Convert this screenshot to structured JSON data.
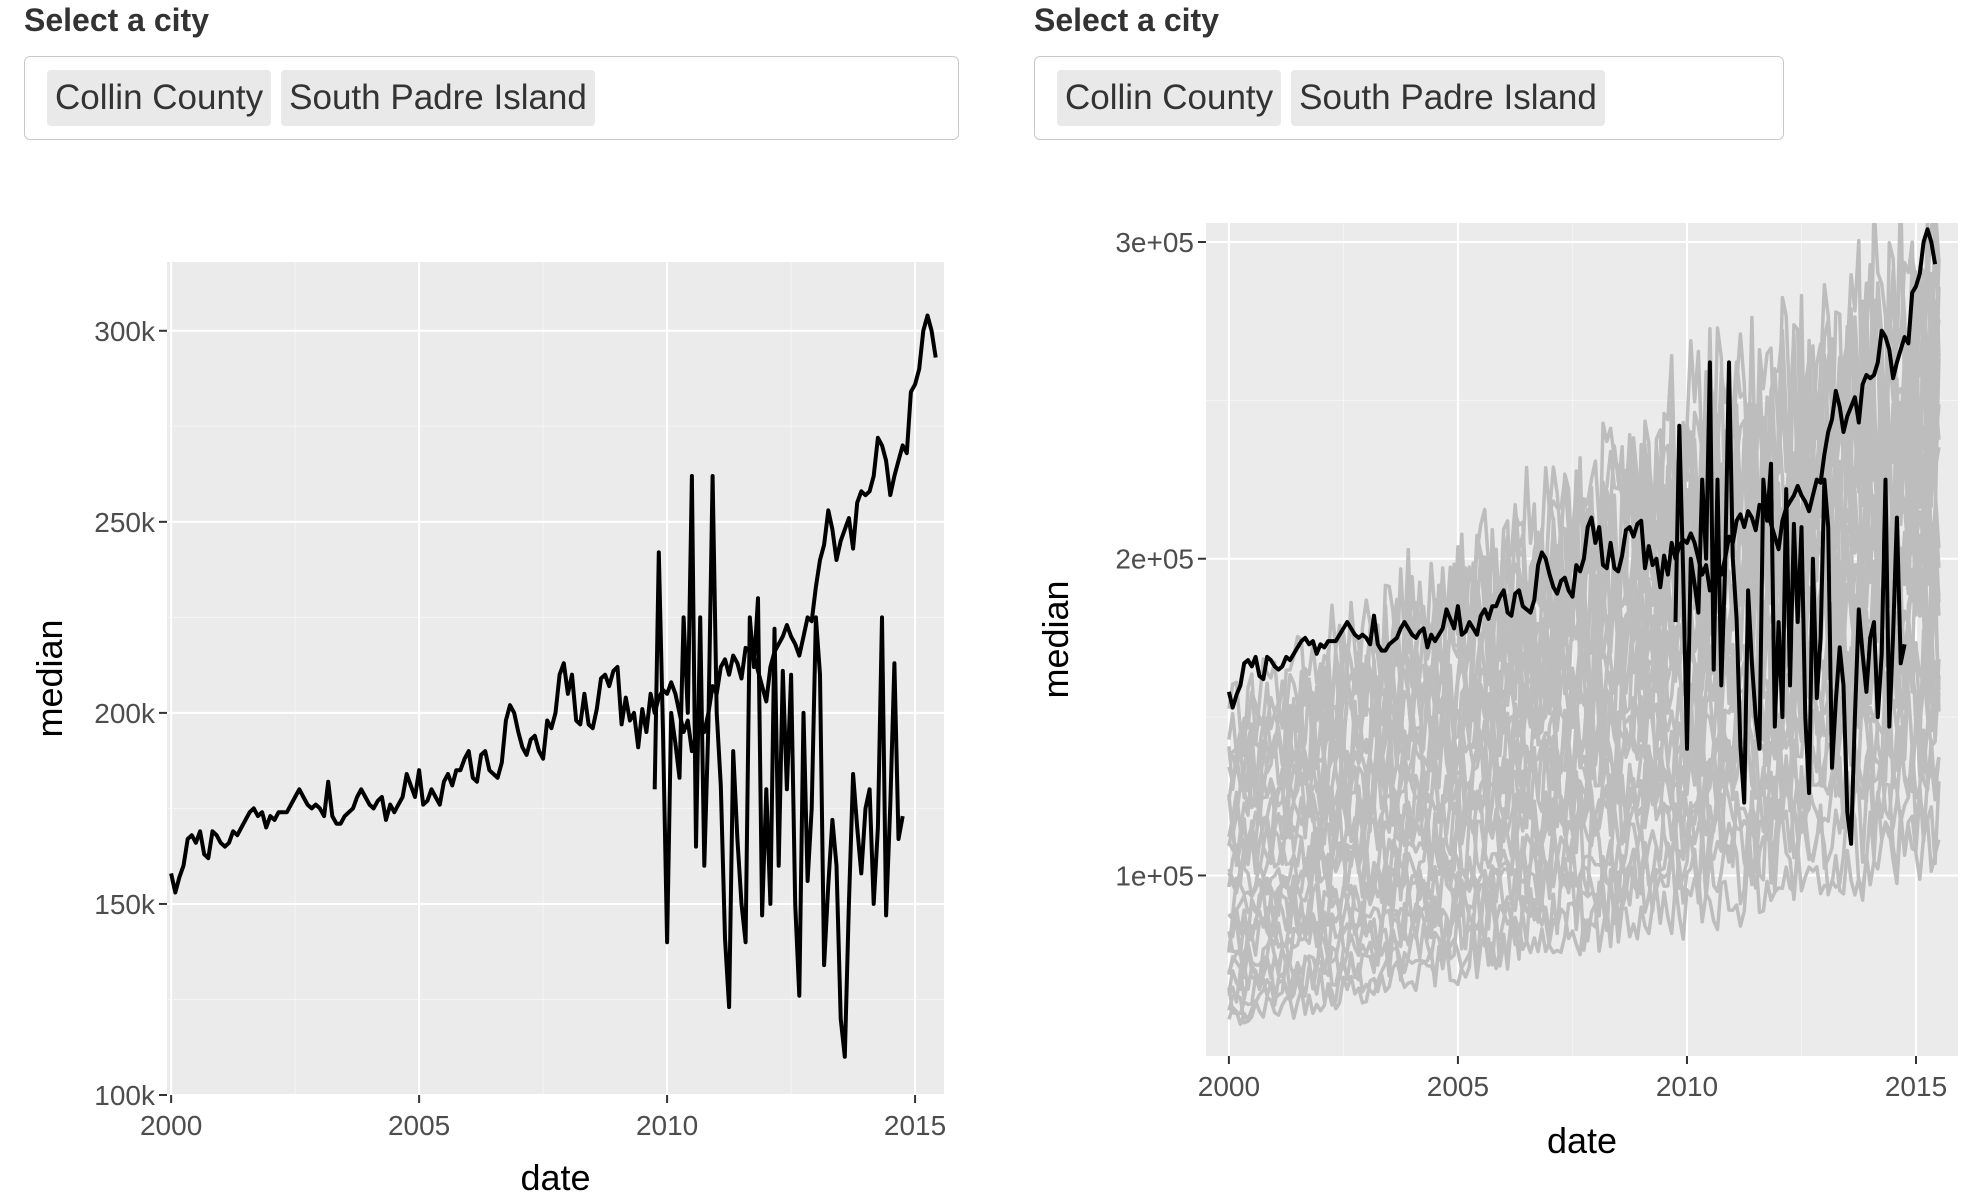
{
  "widgets": [
    {
      "label": "Select a city",
      "chips": [
        "Collin County",
        "South Padre Island"
      ]
    },
    {
      "label": "Select a city",
      "chips": [
        "Collin County",
        "South Padre Island"
      ]
    }
  ],
  "colors": {
    "panel_bg": "#ebebeb",
    "grid": "#ffffff",
    "highlight_line": "#000000",
    "background_lines": "#bdbdbd",
    "tick_text": "#4d4d4d"
  },
  "chart_data": [
    {
      "type": "line",
      "xlabel": "date",
      "ylabel": "median",
      "xlim": [
        "1999-12-01",
        "2015-08-01"
      ],
      "ylim": [
        100000,
        318000
      ],
      "x_ticks": [
        "2000",
        "2005",
        "2010",
        "2015"
      ],
      "y_ticks": [
        {
          "value": 100000,
          "label": "100k"
        },
        {
          "value": 150000,
          "label": "150k"
        },
        {
          "value": 200000,
          "label": "200k"
        },
        {
          "value": 250000,
          "label": "250k"
        },
        {
          "value": 300000,
          "label": "300k"
        }
      ],
      "series": [
        {
          "start": "2000-01",
          "step_months": 1,
          "values": [
            158000,
            153000,
            157000,
            160000,
            167000,
            168000,
            166000,
            169000,
            163000,
            162000,
            169000,
            168000,
            166000,
            165000,
            166000,
            169000,
            168000,
            170000,
            172000,
            174000,
            175000,
            173000,
            174000,
            170000,
            173000,
            172000,
            174000,
            174000,
            174000,
            176000,
            178000,
            180000,
            178000,
            176000,
            175000,
            176000,
            175000,
            173000,
            182000,
            173000,
            171000,
            171000,
            173000,
            174000,
            175000,
            178000,
            180000,
            178000,
            176000,
            175000,
            177000,
            178000,
            172000,
            176000,
            174000,
            176000,
            178000,
            184000,
            181000,
            178000,
            185000,
            176000,
            177000,
            180000,
            178000,
            176000,
            182000,
            184000,
            181000,
            185000,
            185000,
            188000,
            190000,
            183000,
            182000,
            189000,
            190000,
            185000,
            184000,
            183000,
            187000,
            198000,
            202000,
            200000,
            195000,
            191000,
            189000,
            193000,
            194000,
            190000,
            188000,
            198000,
            196000,
            200000,
            210000,
            213000,
            205000,
            210000,
            198000,
            197000,
            205000,
            197000,
            196000,
            201000,
            209000,
            210000,
            207000,
            211000,
            212000,
            197000,
            204000,
            198000,
            200000,
            191000,
            201000,
            195000,
            205000,
            200000,
            204000,
            206000,
            205000,
            208000,
            205000,
            200000,
            195000,
            198000,
            190000,
            194000,
            196000,
            195000,
            200000,
            207000,
            205000,
            212000,
            214000,
            210000,
            215000,
            213000,
            209000,
            217000,
            216000,
            215000,
            211000,
            207000,
            203000,
            212000,
            216000,
            218000,
            220000,
            223000,
            220000,
            218000,
            215000,
            220000,
            225000,
            224000,
            233000,
            240000,
            244000,
            253000,
            248000,
            240000,
            245000,
            248000,
            251000,
            243000,
            255000,
            258000,
            257000,
            258000,
            262000,
            272000,
            270000,
            266000,
            257000,
            262000,
            266000,
            270000,
            268000,
            284000,
            286000,
            290000,
            300000,
            304000,
            300000,
            293000
          ]
        },
        {
          "start": "2009-10",
          "step_months": 1,
          "values": [
            180000,
            242000,
            195000,
            140000,
            200000,
            192000,
            183000,
            225000,
            200000,
            262000,
            165000,
            225000,
            160000,
            197000,
            262000,
            200000,
            181000,
            141000,
            123000,
            190000,
            167000,
            150000,
            140000,
            225000,
            212000,
            230000,
            147000,
            180000,
            150000,
            222000,
            160000,
            211000,
            180000,
            210000,
            150000,
            126000,
            200000,
            156000,
            175000,
            225000,
            210000,
            134000,
            155000,
            172000,
            160000,
            120000,
            110000,
            150000,
            184000,
            170000,
            158000,
            175000,
            180000,
            150000,
            170000,
            225000,
            147000,
            176000,
            213000,
            167000,
            173000
          ]
        }
      ]
    },
    {
      "type": "line",
      "xlabel": "date",
      "ylabel": "median",
      "xlim": [
        "1999-07-01",
        "2015-12-01"
      ],
      "ylim": [
        43000,
        306000
      ],
      "x_ticks": [
        "2000",
        "2005",
        "2010",
        "2015"
      ],
      "y_ticks": [
        {
          "value": 100000,
          "label": "1e+05"
        },
        {
          "value": 200000,
          "label": "2e+05"
        },
        {
          "value": 300000,
          "label": "3e+05"
        }
      ],
      "background_series_count": 28,
      "background_band": {
        "min_start": 55000,
        "max_start": 148000,
        "min_end": 110000,
        "max_end": 282000
      },
      "highlight_series": "same as chart 1"
    }
  ]
}
